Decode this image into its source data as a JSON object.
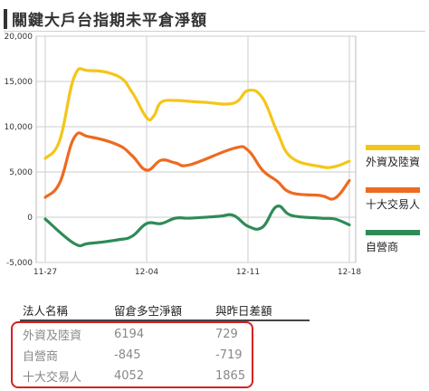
{
  "title": "關鍵大戶台指期未平倉淨額",
  "chart_data": {
    "type": "line",
    "ylim": [
      -5000,
      20000
    ],
    "yticks": [
      "20,000",
      "15,000",
      "10,000",
      "5,000",
      "0",
      "-5,000"
    ],
    "ytick_values": [
      20000,
      15000,
      10000,
      5000,
      0,
      -5000
    ],
    "xticks": [
      "11-27",
      "12-04",
      "12-11",
      "12-18"
    ],
    "xtick_days": [
      0,
      7,
      14,
      21
    ],
    "series": [
      {
        "name": "外資及陸資",
        "color": "#f5c518",
        "x": [
          0,
          1,
          2,
          3,
          5,
          6,
          7,
          7.5,
          8,
          9,
          10,
          11,
          13,
          14,
          15,
          16,
          17,
          19,
          20,
          21
        ],
        "y": [
          6500,
          8500,
          15500,
          16200,
          15600,
          13800,
          11000,
          11200,
          12700,
          12900,
          12800,
          12700,
          12600,
          14000,
          13200,
          9500,
          6600,
          5600,
          5600,
          6194
        ]
      },
      {
        "name": "十大交易人",
        "color": "#ee6a1f",
        "x": [
          0,
          1,
          2,
          3,
          5,
          6,
          7,
          8,
          9,
          10,
          13,
          14,
          15,
          16,
          17,
          19,
          20,
          21
        ],
        "y": [
          2200,
          3800,
          8800,
          8900,
          8000,
          6800,
          5200,
          6300,
          6000,
          5800,
          7600,
          7400,
          5200,
          4000,
          2700,
          2400,
          2100,
          4052
        ]
      },
      {
        "name": "自營商",
        "color": "#2e8b57",
        "x": [
          0,
          2,
          3,
          5,
          6,
          7,
          8,
          9,
          10,
          12,
          13,
          14,
          15,
          16,
          17,
          19,
          20,
          21
        ],
        "y": [
          -200,
          -2900,
          -2900,
          -2500,
          -2100,
          -700,
          -700,
          -100,
          -100,
          100,
          200,
          -1000,
          -1100,
          1200,
          200,
          -100,
          -200,
          -845
        ]
      }
    ]
  },
  "table": {
    "headers": [
      "法人名稱",
      "留倉多空淨額",
      "與昨日差額"
    ],
    "rows": [
      {
        "name": "外資及陸資",
        "net": "6194",
        "diff": "729"
      },
      {
        "name": "自營商",
        "net": "-845",
        "diff": "-719"
      },
      {
        "name": "十大交易人",
        "net": "4052",
        "diff": "1865"
      }
    ]
  }
}
